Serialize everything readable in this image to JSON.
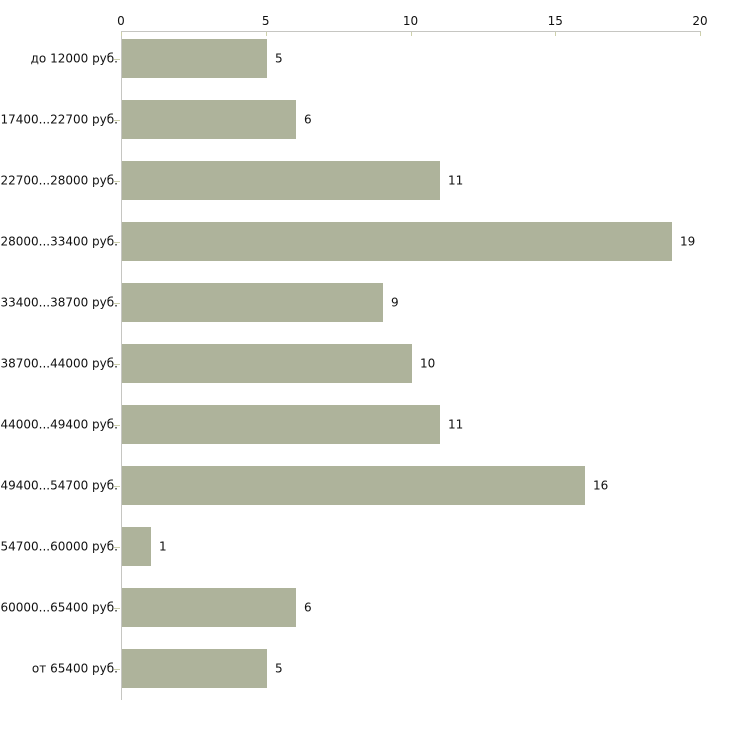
{
  "chart_data": {
    "type": "bar",
    "orientation": "horizontal",
    "categories": [
      "до 12000 руб.",
      "17400...22700 руб.",
      "22700...28000 руб.",
      "28000...33400 руб.",
      "33400...38700 руб.",
      "38700...44000 руб.",
      "44000...49400 руб.",
      "49400...54700 руб.",
      "54700...60000 руб.",
      "60000...65400 руб.",
      "от 65400 руб."
    ],
    "values": [
      5,
      6,
      11,
      19,
      9,
      10,
      11,
      16,
      1,
      6,
      5
    ],
    "data_labels": [
      5,
      6,
      11,
      19,
      9,
      10,
      11,
      16,
      1,
      6,
      5
    ],
    "x_ticks": [
      0,
      5,
      10,
      15,
      20
    ],
    "xlim": [
      0,
      20
    ],
    "grid": false,
    "legend": false,
    "axis_position": "top",
    "colors": {
      "bar": "#aeb39b",
      "axis_line": "#c6c6c2",
      "tick_mark": "#cdd0ab",
      "text": "#111111",
      "background": "#ffffff"
    }
  }
}
